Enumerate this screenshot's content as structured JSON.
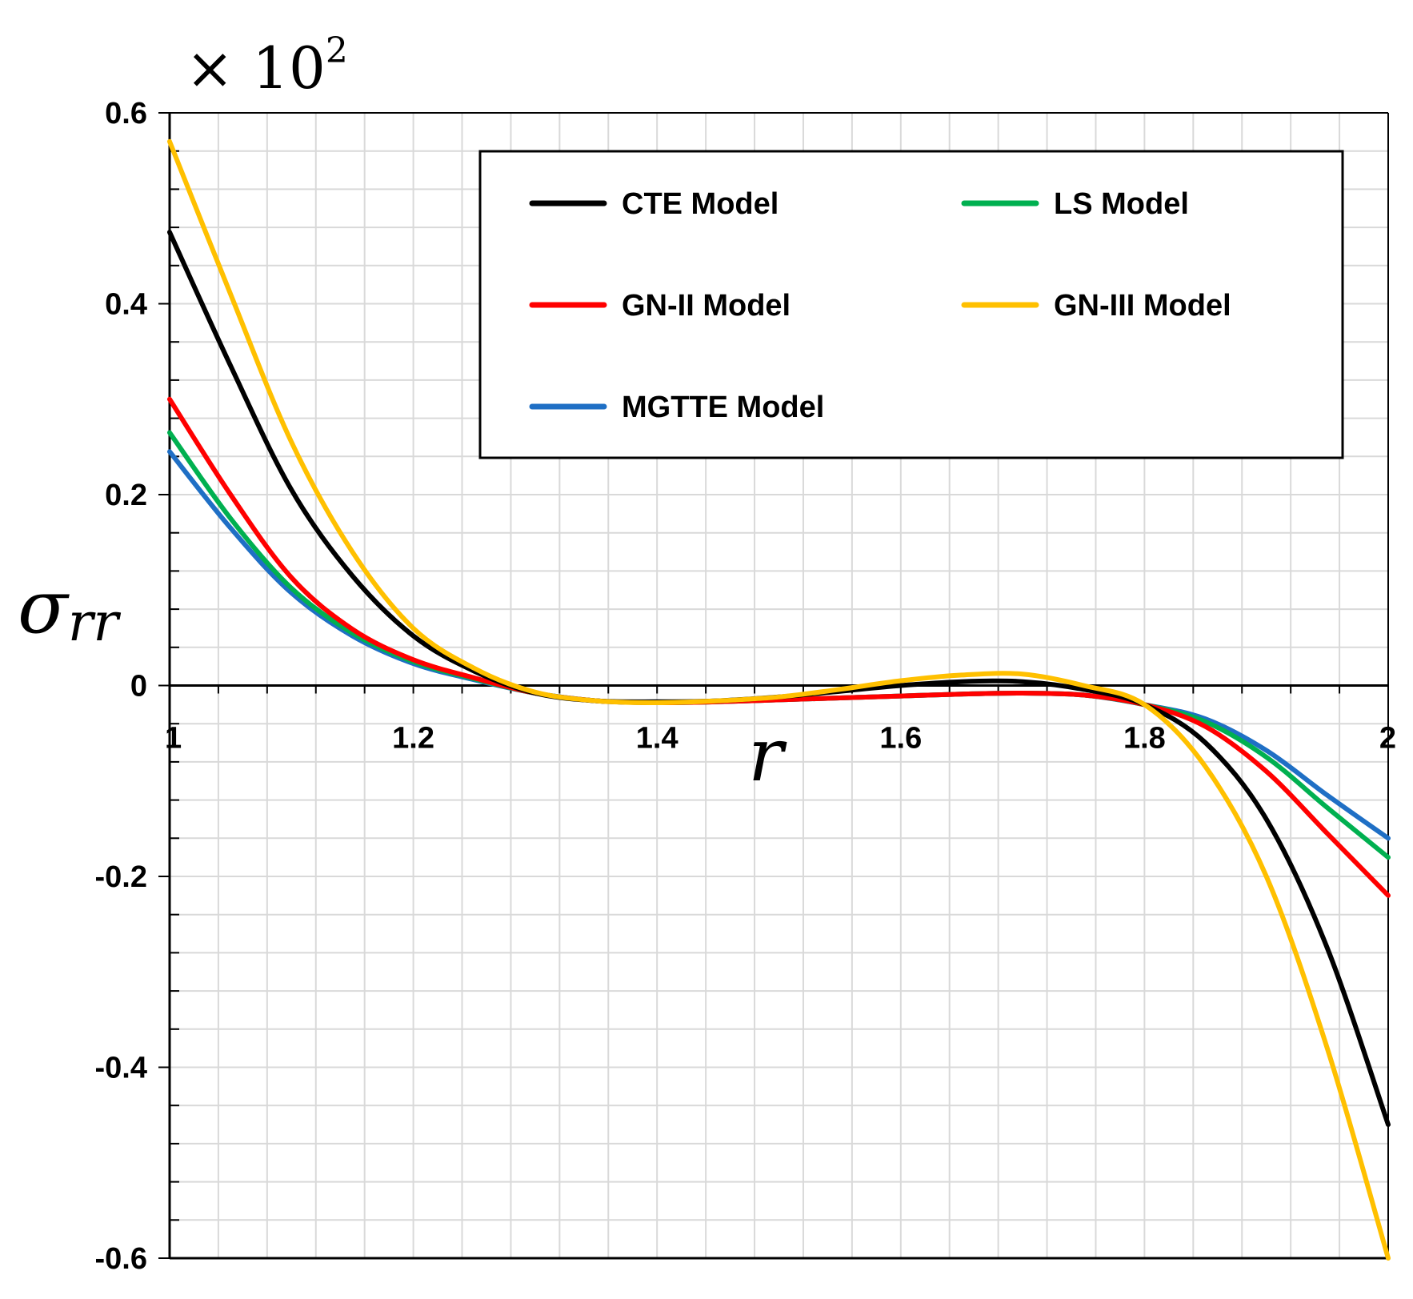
{
  "chart_data": {
    "type": "line",
    "title": "",
    "scale_prefix": "× 10",
    "scale_exponent": "2",
    "xlabel": "r",
    "ylabel_main": "σ",
    "ylabel_sub": "rr",
    "xlim": [
      1,
      2
    ],
    "ylim": [
      -0.6,
      0.6
    ],
    "grid": true,
    "legend_position": "top-right",
    "x_ticks": [
      "1",
      "1.2",
      "1.4",
      "1.6",
      "1.8",
      "2"
    ],
    "y_ticks": [
      "0.6",
      "0.4",
      "0.2",
      "0",
      "-0.2",
      "-0.4",
      "-0.6"
    ],
    "x": [
      1.0,
      1.05,
      1.1,
      1.15,
      1.2,
      1.25,
      1.3,
      1.35,
      1.4,
      1.45,
      1.5,
      1.55,
      1.6,
      1.65,
      1.7,
      1.75,
      1.8,
      1.85,
      1.9,
      1.95,
      2.0
    ],
    "series": [
      {
        "name": "CTE Model",
        "color": "#000000",
        "values": [
          0.475,
          0.335,
          0.205,
          0.115,
          0.052,
          0.015,
          -0.008,
          -0.016,
          -0.017,
          -0.016,
          -0.012,
          -0.006,
          0.0,
          0.004,
          0.004,
          -0.004,
          -0.02,
          -0.06,
          -0.14,
          -0.275,
          -0.46
        ]
      },
      {
        "name": "LS Model",
        "color": "#00b050",
        "values": [
          0.265,
          0.175,
          0.102,
          0.055,
          0.025,
          0.007,
          -0.008,
          -0.016,
          -0.018,
          -0.017,
          -0.015,
          -0.013,
          -0.011,
          -0.009,
          -0.008,
          -0.01,
          -0.02,
          -0.038,
          -0.075,
          -0.128,
          -0.18
        ]
      },
      {
        "name": "GN-II Model",
        "color": "#ff0000",
        "values": [
          0.3,
          0.2,
          0.113,
          0.059,
          0.027,
          0.008,
          -0.008,
          -0.016,
          -0.018,
          -0.017,
          -0.015,
          -0.013,
          -0.011,
          -0.009,
          -0.008,
          -0.01,
          -0.02,
          -0.043,
          -0.09,
          -0.155,
          -0.22
        ]
      },
      {
        "name": "GN-III Model",
        "color": "#ffc000",
        "values": [
          0.57,
          0.41,
          0.255,
          0.14,
          0.06,
          0.018,
          -0.007,
          -0.016,
          -0.018,
          -0.016,
          -0.012,
          -0.004,
          0.005,
          0.011,
          0.012,
          0.0,
          -0.02,
          -0.085,
          -0.2,
          -0.38,
          -0.6
        ]
      },
      {
        "name": "MGTTE Model",
        "color": "#1f6fc5",
        "values": [
          0.245,
          0.165,
          0.097,
          0.052,
          0.023,
          0.006,
          -0.008,
          -0.016,
          -0.018,
          -0.017,
          -0.015,
          -0.013,
          -0.011,
          -0.009,
          -0.008,
          -0.01,
          -0.02,
          -0.035,
          -0.068,
          -0.115,
          -0.16
        ]
      }
    ]
  }
}
